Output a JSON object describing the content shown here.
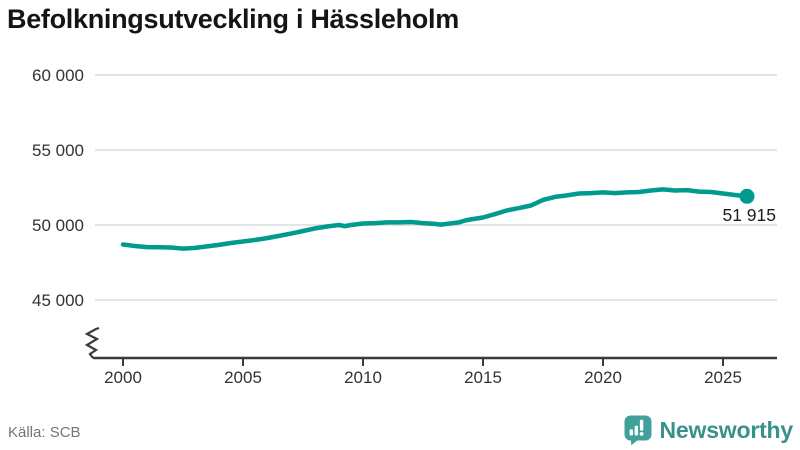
{
  "title": "Befolkningsutveckling i Hässleholm",
  "colors": {
    "line": "#009b8e",
    "grid": "#e4e4e4",
    "axis": "#3a3a3a",
    "tick_label": "#333333",
    "annotation": "#1d1d1d",
    "logo_teal": "#42a09a"
  },
  "chart_data": {
    "type": "line",
    "title": "Befolkningsutveckling i Hässleholm",
    "xlabel": "",
    "ylabel": "",
    "grid": "horizontal",
    "legend": "none",
    "axis_break": true,
    "xlim": [
      1999.3,
      2027.3
    ],
    "ylim": [
      44500,
      61000
    ],
    "x_ticks": [
      {
        "value": 2000,
        "label": "2000"
      },
      {
        "value": 2005,
        "label": "2005"
      },
      {
        "value": 2010,
        "label": "2010"
      },
      {
        "value": 2015,
        "label": "2015"
      },
      {
        "value": 2020,
        "label": "2020"
      },
      {
        "value": 2025,
        "label": "2025"
      }
    ],
    "y_ticks": [
      {
        "value": 60000,
        "label": "60 000"
      },
      {
        "value": 55000,
        "label": "55 000"
      },
      {
        "value": 50000,
        "label": "50 000"
      },
      {
        "value": 45000,
        "label": "45 000"
      }
    ],
    "series": [
      {
        "name": "Befolkning",
        "points": [
          [
            2000.0,
            48700
          ],
          [
            2000.5,
            48600
          ],
          [
            2001.0,
            48530
          ],
          [
            2001.5,
            48520
          ],
          [
            2002.0,
            48500
          ],
          [
            2002.5,
            48430
          ],
          [
            2003.0,
            48470
          ],
          [
            2003.5,
            48570
          ],
          [
            2004.0,
            48670
          ],
          [
            2004.5,
            48800
          ],
          [
            2005.0,
            48900
          ],
          [
            2005.5,
            49000
          ],
          [
            2006.0,
            49130
          ],
          [
            2006.5,
            49270
          ],
          [
            2007.0,
            49430
          ],
          [
            2007.5,
            49600
          ],
          [
            2008.0,
            49770
          ],
          [
            2008.5,
            49900
          ],
          [
            2009.0,
            50000
          ],
          [
            2009.25,
            49930
          ],
          [
            2009.5,
            50000
          ],
          [
            2010.0,
            50100
          ],
          [
            2010.5,
            50130
          ],
          [
            2011.0,
            50170
          ],
          [
            2011.5,
            50170
          ],
          [
            2012.0,
            50200
          ],
          [
            2012.5,
            50130
          ],
          [
            2013.0,
            50070
          ],
          [
            2013.25,
            50030
          ],
          [
            2013.5,
            50070
          ],
          [
            2014.0,
            50170
          ],
          [
            2014.25,
            50300
          ],
          [
            2014.5,
            50370
          ],
          [
            2015.0,
            50500
          ],
          [
            2015.5,
            50730
          ],
          [
            2016.0,
            50970
          ],
          [
            2016.5,
            51130
          ],
          [
            2017.0,
            51300
          ],
          [
            2017.5,
            51670
          ],
          [
            2018.0,
            51870
          ],
          [
            2018.5,
            51970
          ],
          [
            2019.0,
            52100
          ],
          [
            2019.5,
            52130
          ],
          [
            2020.0,
            52170
          ],
          [
            2020.5,
            52130
          ],
          [
            2021.0,
            52170
          ],
          [
            2021.5,
            52200
          ],
          [
            2022.0,
            52300
          ],
          [
            2022.5,
            52370
          ],
          [
            2023.0,
            52300
          ],
          [
            2023.5,
            52330
          ],
          [
            2024.0,
            52230
          ],
          [
            2024.5,
            52200
          ],
          [
            2025.0,
            52100
          ],
          [
            2025.5,
            52000
          ],
          [
            2026.0,
            51915
          ]
        ]
      }
    ],
    "last_point_label": "51 915"
  },
  "footer": {
    "source": "Källa: SCB",
    "brand": "Newsworthy",
    "logo_icon": "bar-chart-speech-bubble-icon"
  }
}
